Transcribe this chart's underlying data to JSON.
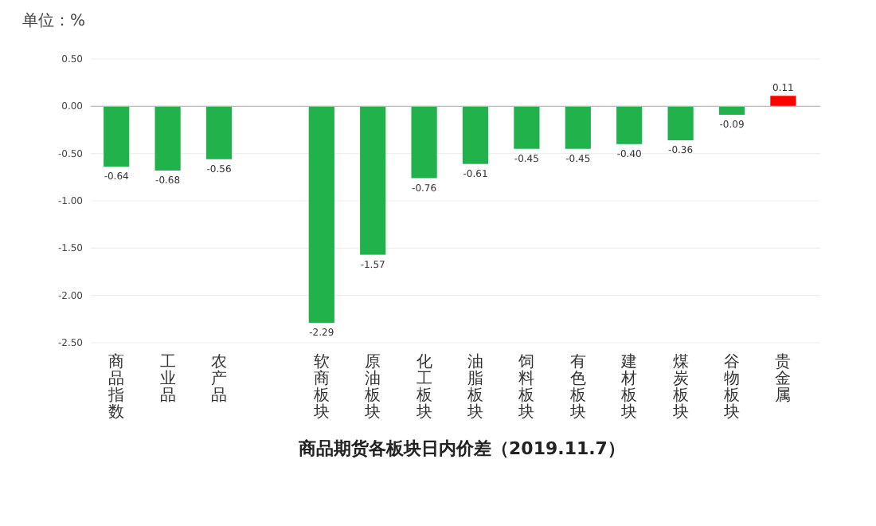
{
  "chart_data": {
    "type": "bar",
    "title": "商品期货各板块日内价差（2019.11.7）",
    "annotations": [
      "单位：%"
    ],
    "categories": [
      "商品指数",
      "工业品",
      "农产品",
      null,
      "软商板块",
      "原油板块",
      "化工板块",
      "油脂板块",
      "饲料板块",
      "有色板块",
      "建材板块",
      "煤炭板块",
      "谷物板块",
      "贵金属"
    ],
    "values": [
      -0.64,
      -0.68,
      -0.56,
      null,
      -2.29,
      -1.57,
      -0.76,
      -0.61,
      -0.45,
      -0.45,
      -0.4,
      -0.36,
      -0.09,
      0.11
    ],
    "colors": [
      "#21b24b",
      "#21b24b",
      "#21b24b",
      null,
      "#21b24b",
      "#21b24b",
      "#21b24b",
      "#21b24b",
      "#21b24b",
      "#21b24b",
      "#21b24b",
      "#21b24b",
      "#21b24b",
      "#ff0000"
    ],
    "value_labels": [
      "-0.64",
      "-0.68",
      "-0.56",
      null,
      "-2.29",
      "-1.57",
      "-0.76",
      "-0.61",
      "-0.45",
      "-0.45",
      "-0.40",
      "-0.36",
      "-0.09",
      "0.11"
    ],
    "ylim": [
      -2.5,
      0.5
    ],
    "yticks": [
      {
        "value": 0.5,
        "label": "0.50"
      },
      {
        "value": 0,
        "label": "0.00"
      },
      {
        "value": -0.5,
        "label": "-0.50"
      },
      {
        "value": -1,
        "label": "-1.00"
      },
      {
        "value": -1.5,
        "label": "-1.50"
      },
      {
        "value": -2,
        "label": "-2.00"
      },
      {
        "value": -2.5,
        "label": "-2.50"
      }
    ],
    "grid": "y"
  }
}
